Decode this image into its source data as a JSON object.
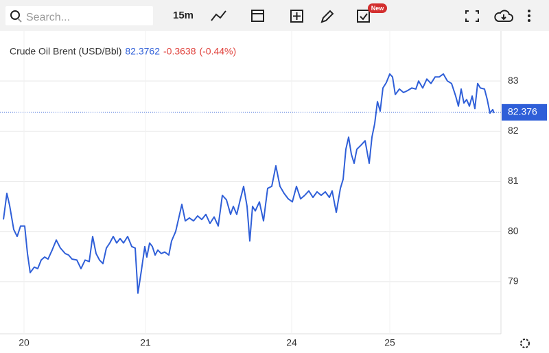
{
  "toolbar": {
    "search_placeholder": "Search...",
    "interval": "15m",
    "badge": "New"
  },
  "chart_data": {
    "type": "line",
    "title": "Crude Oil Brent (USD/Bbl)",
    "quote": {
      "price": 82.3762,
      "change": -0.3638,
      "change_percent": {
        "value": -0.44,
        "label": "(-0.44%)"
      }
    },
    "last_value": 82.376,
    "color": "#2f5fd8",
    "x": [
      5,
      10,
      14,
      20,
      25,
      30,
      36,
      40,
      44,
      50,
      55,
      60,
      65,
      70,
      76,
      82,
      88,
      95,
      100,
      105,
      112,
      118,
      124,
      130,
      135,
      140,
      145,
      150,
      155,
      160,
      165,
      170,
      175,
      180,
      186,
      192,
      197,
      201,
      206,
      211,
      214,
      218,
      222,
      226,
      230,
      235,
      240,
      246,
      250,
      256,
      260,
      265,
      270,
      276,
      282,
      288,
      294,
      300,
      306,
      312,
      318,
      324,
      330,
      336,
      340,
      345,
      350,
      355,
      360,
      364,
      368,
      372,
      378,
      384,
      390,
      396,
      402,
      408,
      414,
      420,
      426,
      432,
      438,
      444,
      450,
      456,
      462,
      468,
      474,
      480,
      484,
      490,
      496,
      500,
      504,
      508,
      512,
      516,
      520,
      526,
      532,
      538,
      542,
      546,
      550,
      554,
      558,
      563,
      568,
      572,
      576,
      582,
      588,
      594,
      600,
      606,
      610,
      616,
      622,
      628,
      634,
      640,
      646,
      652,
      658,
      664,
      668,
      672,
      676,
      680,
      684,
      688,
      692,
      696,
      700,
      706,
      710,
      714,
      718,
      720
    ],
    "values": [
      80.24,
      80.76,
      80.52,
      80.04,
      79.9,
      80.11,
      80.11,
      79.56,
      79.18,
      79.29,
      79.26,
      79.43,
      79.49,
      79.45,
      79.63,
      79.83,
      79.67,
      79.56,
      79.53,
      79.45,
      79.43,
      79.26,
      79.43,
      79.4,
      79.9,
      79.56,
      79.43,
      79.36,
      79.67,
      79.77,
      79.9,
      79.77,
      79.86,
      79.77,
      79.9,
      79.7,
      79.67,
      78.77,
      79.22,
      79.7,
      79.49,
      79.77,
      79.7,
      79.53,
      79.63,
      79.56,
      79.59,
      79.53,
      79.81,
      80.0,
      80.24,
      80.54,
      80.21,
      80.27,
      80.21,
      80.31,
      80.24,
      80.34,
      80.16,
      80.29,
      80.11,
      80.72,
      80.63,
      80.34,
      80.5,
      80.34,
      80.63,
      80.9,
      80.5,
      79.81,
      80.5,
      80.41,
      80.59,
      80.21,
      80.86,
      80.9,
      81.31,
      80.9,
      80.76,
      80.65,
      80.59,
      80.9,
      80.65,
      80.72,
      80.81,
      80.68,
      80.79,
      80.72,
      80.79,
      80.68,
      80.81,
      80.38,
      80.86,
      81.04,
      81.64,
      81.88,
      81.54,
      81.36,
      81.64,
      81.72,
      81.81,
      81.36,
      81.88,
      82.15,
      82.59,
      82.4,
      82.86,
      82.97,
      83.14,
      83.08,
      82.73,
      82.84,
      82.77,
      82.81,
      82.86,
      82.84,
      83.0,
      82.86,
      83.04,
      82.95,
      83.08,
      83.08,
      83.14,
      83.0,
      82.95,
      82.7,
      82.5,
      82.84,
      82.56,
      82.63,
      82.5,
      82.7,
      82.45,
      82.95,
      82.86,
      82.84,
      82.63,
      82.36,
      82.43,
      82.36
    ],
    "xlim": [
      0,
      730
    ],
    "xticks": [
      {
        "value": 35,
        "label": "20"
      },
      {
        "value": 212,
        "label": "21"
      },
      {
        "value": 425,
        "label": "24"
      },
      {
        "value": 568,
        "label": "25"
      }
    ],
    "ylim": [
      77.96,
      84.0
    ],
    "yticks": [
      79,
      80,
      81,
      82,
      83
    ],
    "grid": true
  }
}
